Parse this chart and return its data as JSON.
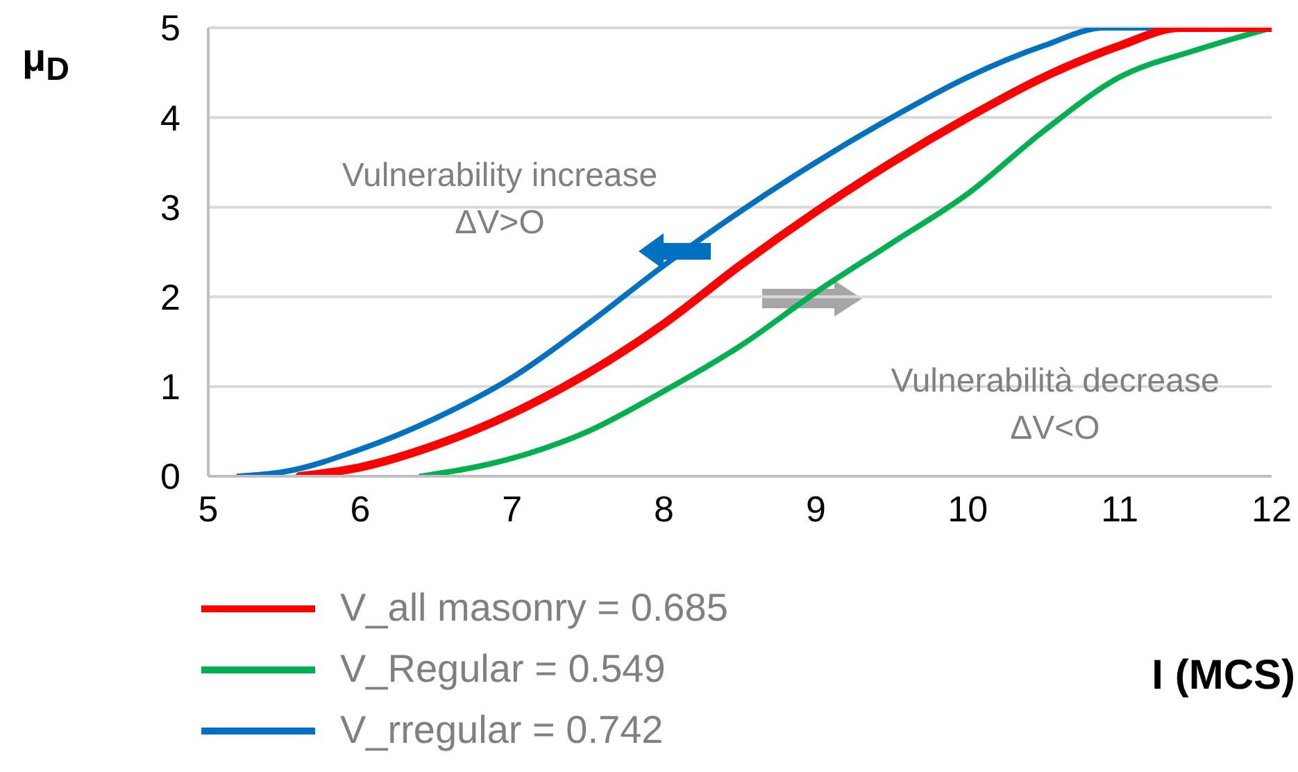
{
  "chart_data": {
    "type": "line",
    "ylabel": "μ$_{D}$",
    "xlabel": "I (MCS)",
    "annotations": [
      "Vulnerability increase\nΔV>O",
      "Vulnerabilità decrease\nΔV<O"
    ],
    "xlim": [
      5,
      12
    ],
    "xticks": [
      5,
      6,
      7,
      8,
      9,
      10,
      11,
      12
    ],
    "ylim": [
      0,
      5
    ],
    "yticks": [
      0,
      1,
      2,
      3,
      4,
      5
    ],
    "grid": "y",
    "legend": "bottom",
    "marker": "none",
    "line_style": "solid",
    "series": [
      {
        "name": "V_all masonry = 0.685",
        "color": "#ff0000",
        "x": [
          5.6,
          6,
          6.5,
          7,
          7.5,
          8,
          8.5,
          9,
          9.5,
          10,
          10.5,
          11,
          11.4,
          12
        ],
        "values": [
          0,
          0.1,
          0.35,
          0.7,
          1.15,
          1.7,
          2.35,
          2.95,
          3.5,
          4,
          4.45,
          4.8,
          5,
          5
        ]
      },
      {
        "name": "V_Regular = 0.549",
        "color": "#00b050",
        "x": [
          6.4,
          7,
          7.5,
          8,
          8.5,
          9,
          9.5,
          10,
          10.5,
          11,
          11.5,
          12
        ],
        "values": [
          0,
          0.2,
          0.5,
          0.95,
          1.45,
          2.05,
          2.6,
          3.15,
          3.85,
          4.45,
          4.75,
          5
        ]
      },
      {
        "name": "V_rregular = 0.742",
        "color": "#0070c0",
        "x": [
          5.2,
          5.5,
          6,
          6.5,
          7,
          7.5,
          8,
          8.5,
          9,
          9.5,
          10,
          10.5,
          10.9,
          12
        ],
        "values": [
          0,
          0.05,
          0.3,
          0.65,
          1.1,
          1.7,
          2.35,
          2.95,
          3.5,
          4,
          4.45,
          4.8,
          5,
          5
        ]
      }
    ]
  }
}
